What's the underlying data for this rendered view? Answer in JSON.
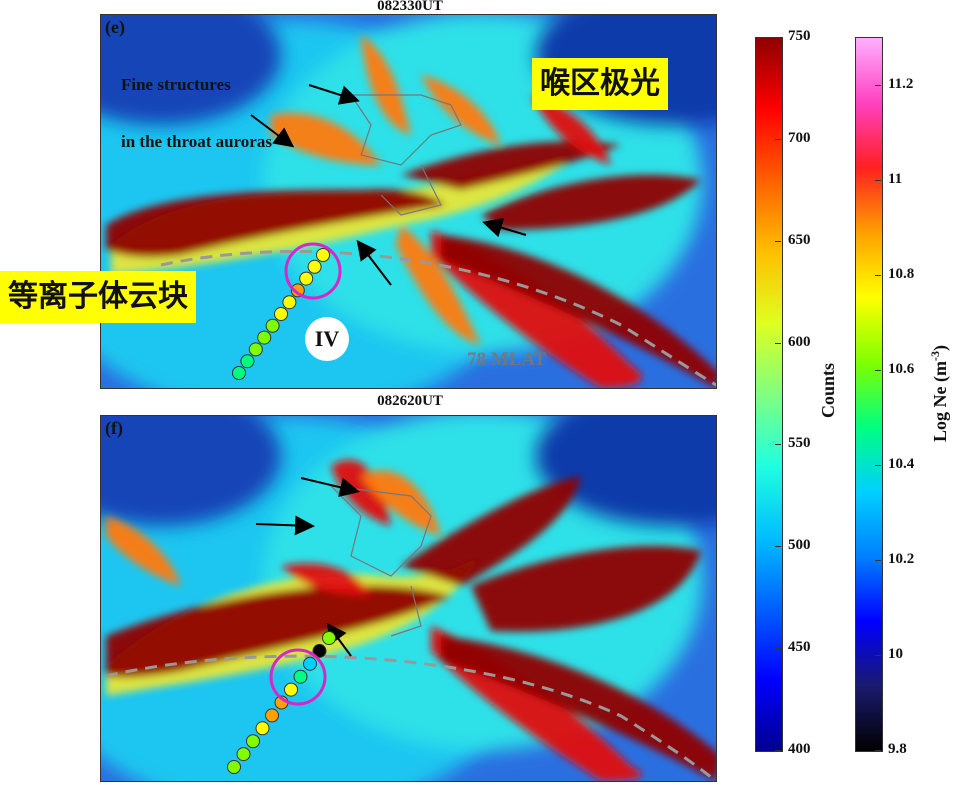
{
  "panels": [
    {
      "letter": "(e)",
      "time": "082330UT",
      "annotation_lines": [
        "Fine structures",
        "in the throat auroras"
      ],
      "mlat_label": "78 MLAT",
      "roman": "IV"
    },
    {
      "letter": "(f)",
      "time": "082620UT",
      "annotation_lines": [],
      "mlat_label": "",
      "roman": ""
    }
  ],
  "callouts": {
    "throat_aurora": "喉区极光",
    "plasma_patch": "等离子体云块"
  },
  "colorbars": {
    "counts": {
      "label": "Counts",
      "ticks": [
        "750",
        "700",
        "650",
        "600",
        "550",
        "500",
        "450",
        "400"
      ],
      "min": 400,
      "max": 750
    },
    "ne": {
      "label_main": "Log Ne (m",
      "label_sup": "-3",
      "label_end": ")",
      "ticks": [
        "11.2",
        "11",
        "10.8",
        "10.6",
        "10.4",
        "10.2",
        "10",
        "9.8"
      ],
      "min": 9.8,
      "max": 11.3
    }
  },
  "colors": {
    "highlight_circle": "#d627c8",
    "callout_bg": "#ffff00",
    "mlat_line": "#999999"
  },
  "chart_data": [
    {
      "type": "heatmap",
      "title": "082330UT",
      "colorbar_label": "Counts",
      "colorbar_range": [
        400,
        750
      ],
      "overlay_label": "78 MLAT",
      "satellite_track_ne_log": [
        10.45,
        10.5,
        10.55,
        10.6,
        10.65,
        10.7,
        10.75,
        10.85,
        10.8,
        10.75,
        10.7
      ]
    },
    {
      "type": "heatmap",
      "title": "082620UT",
      "colorbar_label": "Counts",
      "colorbar_range": [
        400,
        750
      ],
      "satellite_track_ne_log": [
        10.55,
        10.6,
        10.65,
        10.75,
        10.9,
        10.85,
        10.7,
        10.45,
        10.3,
        9.8,
        10.55
      ]
    }
  ]
}
